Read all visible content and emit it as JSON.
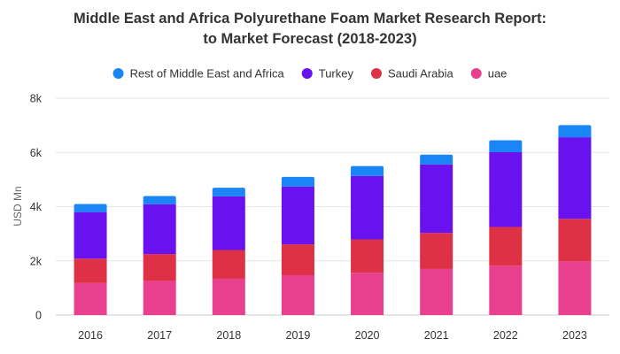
{
  "chart_data": {
    "type": "bar",
    "stacked": true,
    "title": "Middle East and Africa Polyurethane Foam Market Research Report:",
    "subtitle": "to Market Forecast (2018-2023)",
    "ylabel": "USD Mn",
    "xlabel": "",
    "ylim": [
      0,
      8000
    ],
    "y_ticks": [
      0,
      2000,
      4000,
      6000,
      8000
    ],
    "y_tick_labels": [
      "0",
      "2k",
      "4k",
      "6k",
      "8k"
    ],
    "grid": true,
    "legend_position": "top-center",
    "categories": [
      "2016",
      "2017",
      "2018",
      "2019",
      "2020",
      "2021",
      "2022",
      "2023"
    ],
    "series": [
      {
        "name": "uae",
        "color": "#e8408f",
        "values": [
          1180,
          1260,
          1340,
          1470,
          1560,
          1700,
          1820,
          1980
        ]
      },
      {
        "name": "Saudi Arabia",
        "color": "#de3146",
        "values": [
          900,
          990,
          1060,
          1140,
          1230,
          1330,
          1430,
          1570
        ]
      },
      {
        "name": "Turkey",
        "color": "#6a11f0",
        "values": [
          1720,
          1840,
          1980,
          2130,
          2340,
          2530,
          2760,
          3010
        ]
      },
      {
        "name": "Rest of Middle East and Africa",
        "color": "#1a85f5",
        "values": [
          300,
          300,
          320,
          360,
          370,
          360,
          440,
          450
        ]
      }
    ],
    "legend_order": [
      "Rest of Middle East and Africa",
      "Turkey",
      "Saudi Arabia",
      "uae"
    ]
  }
}
